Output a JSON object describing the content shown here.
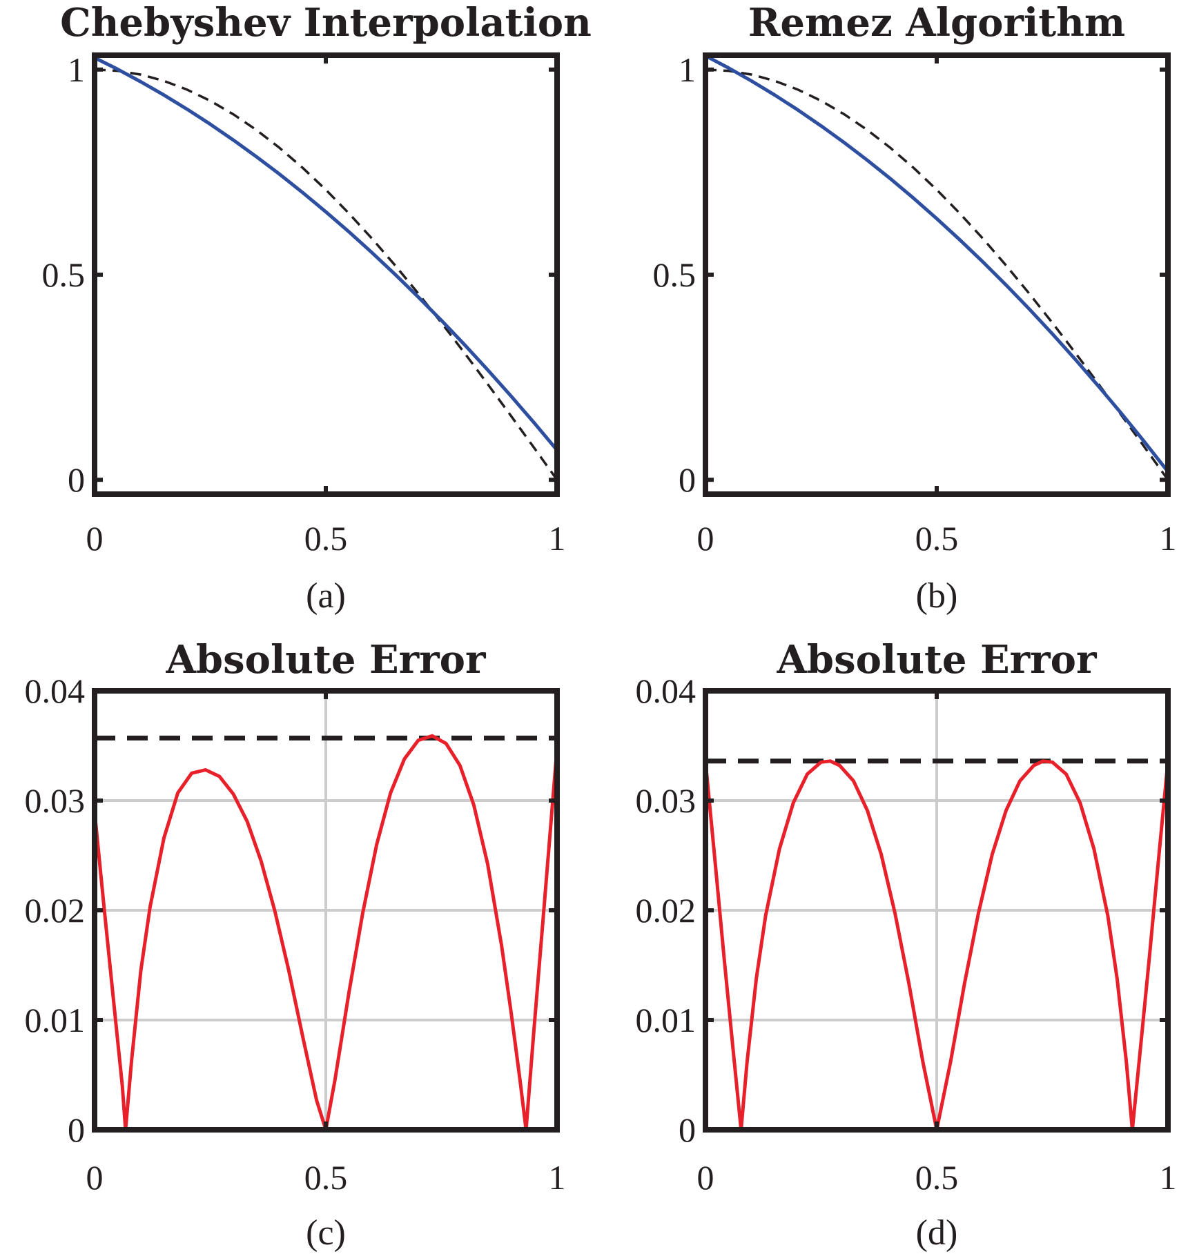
{
  "colors": {
    "axes": "#231f20",
    "approx_line": "#2e4fa0",
    "error_line": "#e8202a",
    "target_dashed": "#231f20",
    "grid": "#cccccc"
  },
  "chart_data": [
    {
      "id": "a",
      "type": "line",
      "title": "Chebyshev Interpolation",
      "caption": "(a)",
      "xlabel": "",
      "ylabel": "",
      "xlim": [
        0,
        1
      ],
      "ylim": [
        -0.035,
        1.035
      ],
      "xticks": [
        0,
        0.5,
        1
      ],
      "xtick_labels": [
        "0",
        "0.5",
        "1"
      ],
      "yticks": [
        0,
        0.5,
        1
      ],
      "ytick_labels": [
        "0",
        "0.5",
        "1"
      ],
      "grid": false,
      "series": [
        {
          "style": "dashed",
          "color": "#231f20",
          "x": [
            0,
            0.05,
            0.1,
            0.15,
            0.2,
            0.25,
            0.3,
            0.35,
            0.4,
            0.45,
            0.5,
            0.55,
            0.6,
            0.65,
            0.7,
            0.75,
            0.8,
            0.85,
            0.9,
            0.95,
            1
          ],
          "y": [
            1.0,
            0.9969,
            0.9877,
            0.9724,
            0.9511,
            0.9239,
            0.891,
            0.8526,
            0.809,
            0.7604,
            0.7071,
            0.6494,
            0.5878,
            0.5225,
            0.454,
            0.3827,
            0.309,
            0.2334,
            0.1564,
            0.0785,
            0.0
          ]
        },
        {
          "style": "solid",
          "color": "#2e4fa0",
          "x": [
            0,
            0.05,
            0.1,
            0.15,
            0.2,
            0.25,
            0.3,
            0.35,
            0.4,
            0.45,
            0.5,
            0.55,
            0.6,
            0.65,
            0.7,
            0.75,
            0.8,
            0.85,
            0.9,
            0.95,
            1
          ],
          "y": [
            1.029,
            1.0007,
            0.9703,
            0.9379,
            0.9034,
            0.8669,
            0.8283,
            0.7876,
            0.7449,
            0.7001,
            0.6533,
            0.6044,
            0.5535,
            0.5005,
            0.4455,
            0.3884,
            0.3292,
            0.268,
            0.2048,
            0.1395,
            0.0722
          ]
        }
      ]
    },
    {
      "id": "b",
      "type": "line",
      "title": "Remez Algorithm",
      "caption": "(b)",
      "xlabel": "",
      "ylabel": "",
      "xlim": [
        0,
        1
      ],
      "ylim": [
        -0.035,
        1.035
      ],
      "xticks": [
        0,
        0.5,
        1
      ],
      "xtick_labels": [
        "0",
        "0.5",
        "1"
      ],
      "yticks": [
        0,
        0.5,
        1
      ],
      "ytick_labels": [
        "0",
        "0.5",
        "1"
      ],
      "grid": false,
      "series": [
        {
          "style": "dashed",
          "color": "#231f20",
          "x": [
            0,
            0.05,
            0.1,
            0.15,
            0.2,
            0.25,
            0.3,
            0.35,
            0.4,
            0.45,
            0.5,
            0.55,
            0.6,
            0.65,
            0.7,
            0.75,
            0.8,
            0.85,
            0.9,
            0.95,
            1
          ],
          "y": [
            1.0,
            0.9969,
            0.9877,
            0.9724,
            0.9511,
            0.9239,
            0.891,
            0.8526,
            0.809,
            0.7604,
            0.7071,
            0.6494,
            0.5878,
            0.5225,
            0.454,
            0.3827,
            0.309,
            0.2334,
            0.1564,
            0.0785,
            0.0
          ]
        },
        {
          "style": "solid",
          "color": "#2e4fa0",
          "x": [
            0,
            0.05,
            0.1,
            0.15,
            0.2,
            0.25,
            0.3,
            0.35,
            0.4,
            0.45,
            0.5,
            0.55,
            0.6,
            0.65,
            0.7,
            0.75,
            0.8,
            0.85,
            0.9,
            0.95,
            1
          ],
          "y": [
            1.0336,
            1.0039,
            0.9719,
            0.9377,
            0.9014,
            0.8628,
            0.822,
            0.779,
            0.7338,
            0.6864,
            0.6368,
            0.585,
            0.531,
            0.4748,
            0.4164,
            0.3558,
            0.293,
            0.228,
            0.1608,
            0.0914,
            0.0198
          ]
        }
      ]
    },
    {
      "id": "c",
      "type": "line",
      "title": "Absolute Error",
      "caption": "(c)",
      "xlabel": "",
      "ylabel": "",
      "xlim": [
        0,
        1
      ],
      "ylim": [
        0,
        0.04
      ],
      "xticks": [
        0,
        0.5,
        1
      ],
      "xtick_labels": [
        "0",
        "0.5",
        "1"
      ],
      "yticks": [
        0,
        0.01,
        0.02,
        0.03,
        0.04
      ],
      "ytick_labels": [
        "0",
        "0.01",
        "0.02",
        "0.03",
        "0.04"
      ],
      "grid": true,
      "series": [
        {
          "style": "dashed",
          "color": "#231f20",
          "x": [
            0,
            1
          ],
          "y": [
            0.0357,
            0.0357
          ]
        },
        {
          "style": "solid",
          "color": "#e8202a",
          "x": [
            0,
            0.02,
            0.04,
            0.06,
            0.067,
            0.08,
            0.1,
            0.12,
            0.15,
            0.18,
            0.21,
            0.24,
            0.27,
            0.3,
            0.33,
            0.36,
            0.39,
            0.42,
            0.45,
            0.48,
            0.5,
            0.52,
            0.55,
            0.58,
            0.61,
            0.64,
            0.67,
            0.7,
            0.73,
            0.76,
            0.79,
            0.82,
            0.85,
            0.88,
            0.9,
            0.92,
            0.933,
            0.95,
            0.97,
            1
          ],
          "y": [
            0.029,
            0.0205,
            0.0122,
            0.004,
            0.0,
            0.0063,
            0.0145,
            0.0203,
            0.0266,
            0.0307,
            0.0325,
            0.0328,
            0.0322,
            0.0306,
            0.0281,
            0.0245,
            0.0199,
            0.0145,
            0.0085,
            0.0027,
            0.0,
            0.0046,
            0.0125,
            0.0198,
            0.026,
            0.0307,
            0.0338,
            0.0355,
            0.0359,
            0.0352,
            0.0332,
            0.0296,
            0.0242,
            0.0168,
            0.0109,
            0.0045,
            0.0,
            0.0091,
            0.0193,
            0.0348
          ]
        }
      ]
    },
    {
      "id": "d",
      "type": "line",
      "title": "Absolute Error",
      "caption": "(d)",
      "xlabel": "",
      "ylabel": "",
      "xlim": [
        0,
        1
      ],
      "ylim": [
        0,
        0.04
      ],
      "xticks": [
        0,
        0.5,
        1
      ],
      "xtick_labels": [
        "0",
        "0.5",
        "1"
      ],
      "yticks": [
        0,
        0.01,
        0.02,
        0.03,
        0.04
      ],
      "ytick_labels": [
        "0",
        "0.01",
        "0.02",
        "0.03",
        "0.04"
      ],
      "grid": true,
      "series": [
        {
          "style": "dashed",
          "color": "#231f20",
          "x": [
            0,
            1
          ],
          "y": [
            0.0336,
            0.0336
          ]
        },
        {
          "style": "solid",
          "color": "#e8202a",
          "x": [
            0,
            0.02,
            0.04,
            0.06,
            0.077,
            0.09,
            0.11,
            0.13,
            0.16,
            0.19,
            0.22,
            0.25,
            0.27,
            0.29,
            0.32,
            0.35,
            0.38,
            0.41,
            0.44,
            0.47,
            0.5,
            0.53,
            0.56,
            0.59,
            0.62,
            0.65,
            0.68,
            0.71,
            0.73,
            0.75,
            0.78,
            0.81,
            0.84,
            0.87,
            0.89,
            0.91,
            0.923,
            0.94,
            0.96,
            0.98,
            1
          ],
          "y": [
            0.0336,
            0.0248,
            0.0158,
            0.0072,
            0.0,
            0.0062,
            0.0138,
            0.0195,
            0.0256,
            0.0298,
            0.0324,
            0.0335,
            0.0336,
            0.0332,
            0.0318,
            0.0291,
            0.0251,
            0.0197,
            0.0133,
            0.0062,
            0.0,
            0.0062,
            0.0133,
            0.0197,
            0.0251,
            0.0291,
            0.0318,
            0.0332,
            0.0336,
            0.0335,
            0.0324,
            0.0298,
            0.0256,
            0.0195,
            0.0138,
            0.0062,
            0.0,
            0.0072,
            0.0158,
            0.0248,
            0.0336
          ]
        }
      ]
    }
  ]
}
